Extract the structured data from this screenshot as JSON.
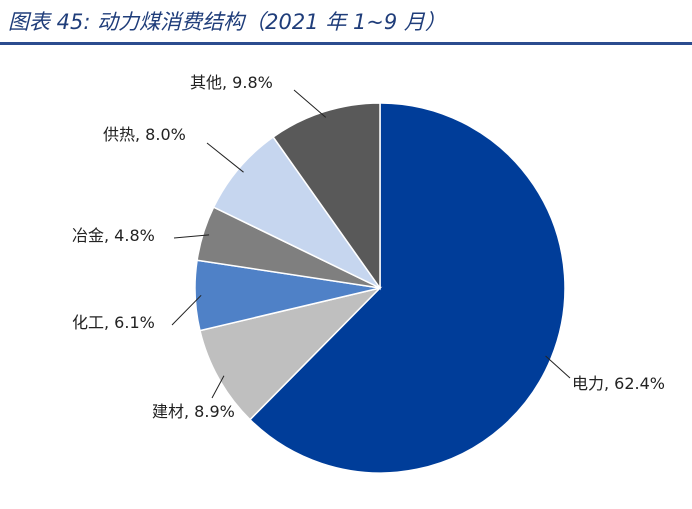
{
  "chart_data": {
    "type": "pie",
    "title": "图表 45:  动力煤消费结构（2021 年 1~9 月）",
    "start": "top",
    "direction": "clockwise",
    "slices": [
      {
        "label": "电力",
        "value": 62.4,
        "text": "电力, 62.4%",
        "color": "#003d99"
      },
      {
        "label": "建材",
        "value": 8.9,
        "text": "建材, 8.9%",
        "color": "#bfbfbf"
      },
      {
        "label": "化工",
        "value": 6.1,
        "text": "化工, 6.1%",
        "color": "#4f81c7"
      },
      {
        "label": "冶金",
        "value": 4.8,
        "text": "冶金, 4.8%",
        "color": "#7f7f7f"
      },
      {
        "label": "供热",
        "value": 8.0,
        "text": "供热, 8.0%",
        "color": "#c6d6ef"
      },
      {
        "label": "其他",
        "value": 9.8,
        "text": "其他, 9.8%",
        "color": "#595959"
      }
    ]
  }
}
